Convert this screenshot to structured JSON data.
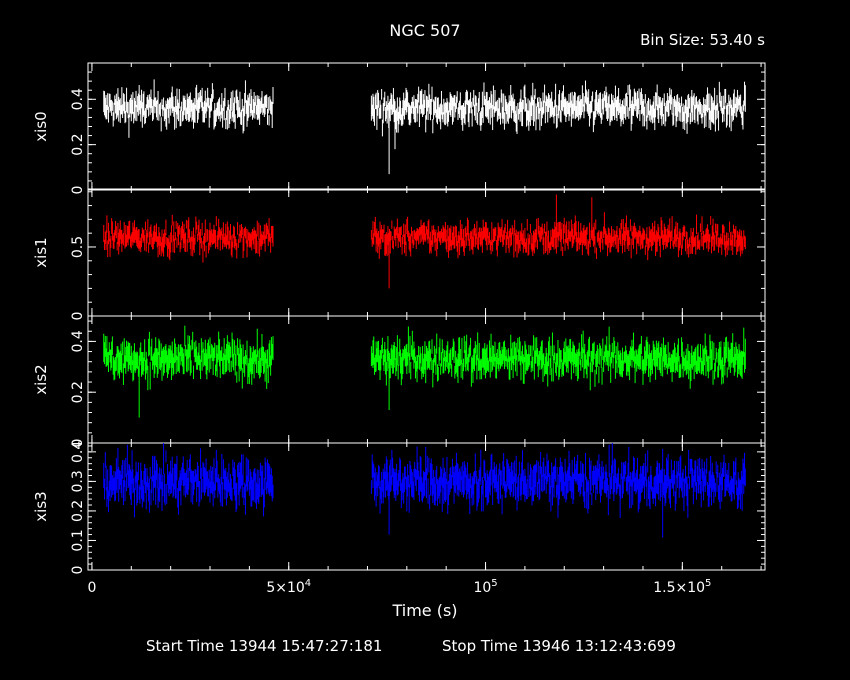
{
  "title": "NGC 507",
  "bin_size_label": "Bin Size: 53.40 s",
  "footer": {
    "start": "Start Time 13944 15:47:27:181",
    "stop": "Stop Time 13946 13:12:43:699"
  },
  "chart_data": [
    {
      "type": "line",
      "name": "xis0",
      "ylabel": "xis0",
      "color": "#ffffff",
      "ylim": [
        0,
        0.56
      ],
      "yticks": [
        0,
        0.2,
        0.4
      ],
      "ytick_labels": [
        "0",
        "0.2",
        "0.4"
      ],
      "xlim": [
        -1000,
        171000
      ],
      "xticks": [
        0,
        50000,
        100000,
        150000
      ],
      "segments": [
        [
          3000,
          46000
        ],
        [
          71000,
          166000
        ]
      ],
      "typical_value": 0.36,
      "scatter": 0.05,
      "notable_points": [
        {
          "x": 75500,
          "y": 0.07
        },
        {
          "x": 77000,
          "y": 0.18
        }
      ]
    },
    {
      "type": "line",
      "name": "xis1",
      "ylabel": "xis1",
      "color": "#ff0000",
      "ylim": [
        0,
        0.92
      ],
      "yticks": [
        0,
        0.5
      ],
      "ytick_labels": [
        "0",
        "0.5"
      ],
      "xlim": [
        -1000,
        171000
      ],
      "xticks": [
        0,
        50000,
        100000,
        150000
      ],
      "segments": [
        [
          3000,
          46000
        ],
        [
          71000,
          166000
        ]
      ],
      "typical_value": 0.57,
      "scatter": 0.07,
      "notable_points": [
        {
          "x": 75500,
          "y": 0.2
        },
        {
          "x": 118000,
          "y": 0.88
        },
        {
          "x": 127000,
          "y": 0.86
        }
      ]
    },
    {
      "type": "line",
      "name": "xis2",
      "ylabel": "xis2",
      "color": "#00ff00",
      "ylim": [
        0,
        0.5
      ],
      "yticks": [
        0,
        0.2,
        0.4
      ],
      "ytick_labels": [
        "0",
        "0.2",
        "0.4"
      ],
      "xlim": [
        -1000,
        171000
      ],
      "xticks": [
        0,
        50000,
        100000,
        150000
      ],
      "segments": [
        [
          3000,
          46000
        ],
        [
          71000,
          166000
        ]
      ],
      "typical_value": 0.33,
      "scatter": 0.05,
      "notable_points": [
        {
          "x": 12000,
          "y": 0.1
        },
        {
          "x": 75500,
          "y": 0.13
        }
      ]
    },
    {
      "type": "line",
      "name": "xis3",
      "ylabel": "xis3",
      "color": "#0000ff",
      "ylim": [
        0,
        0.43
      ],
      "yticks": [
        0,
        0.1,
        0.2,
        0.3,
        0.4
      ],
      "ytick_labels": [
        "0",
        "0.1",
        "0.2",
        "0.3",
        "0.4"
      ],
      "xlim": [
        -1000,
        171000
      ],
      "xticks": [
        0,
        50000,
        100000,
        150000
      ],
      "xtick_labels": [
        {
          "base": "0",
          "sup": ""
        },
        {
          "base": "5×10",
          "sup": "4"
        },
        {
          "base": "10",
          "sup": "5"
        },
        {
          "base": "1.5×10",
          "sup": "5"
        }
      ],
      "xlabel": "Time (s)",
      "segments": [
        [
          3000,
          46000
        ],
        [
          71000,
          166000
        ]
      ],
      "typical_value": 0.3,
      "scatter": 0.05,
      "notable_points": [
        {
          "x": 75500,
          "y": 0.12
        },
        {
          "x": 145000,
          "y": 0.11
        }
      ]
    }
  ]
}
